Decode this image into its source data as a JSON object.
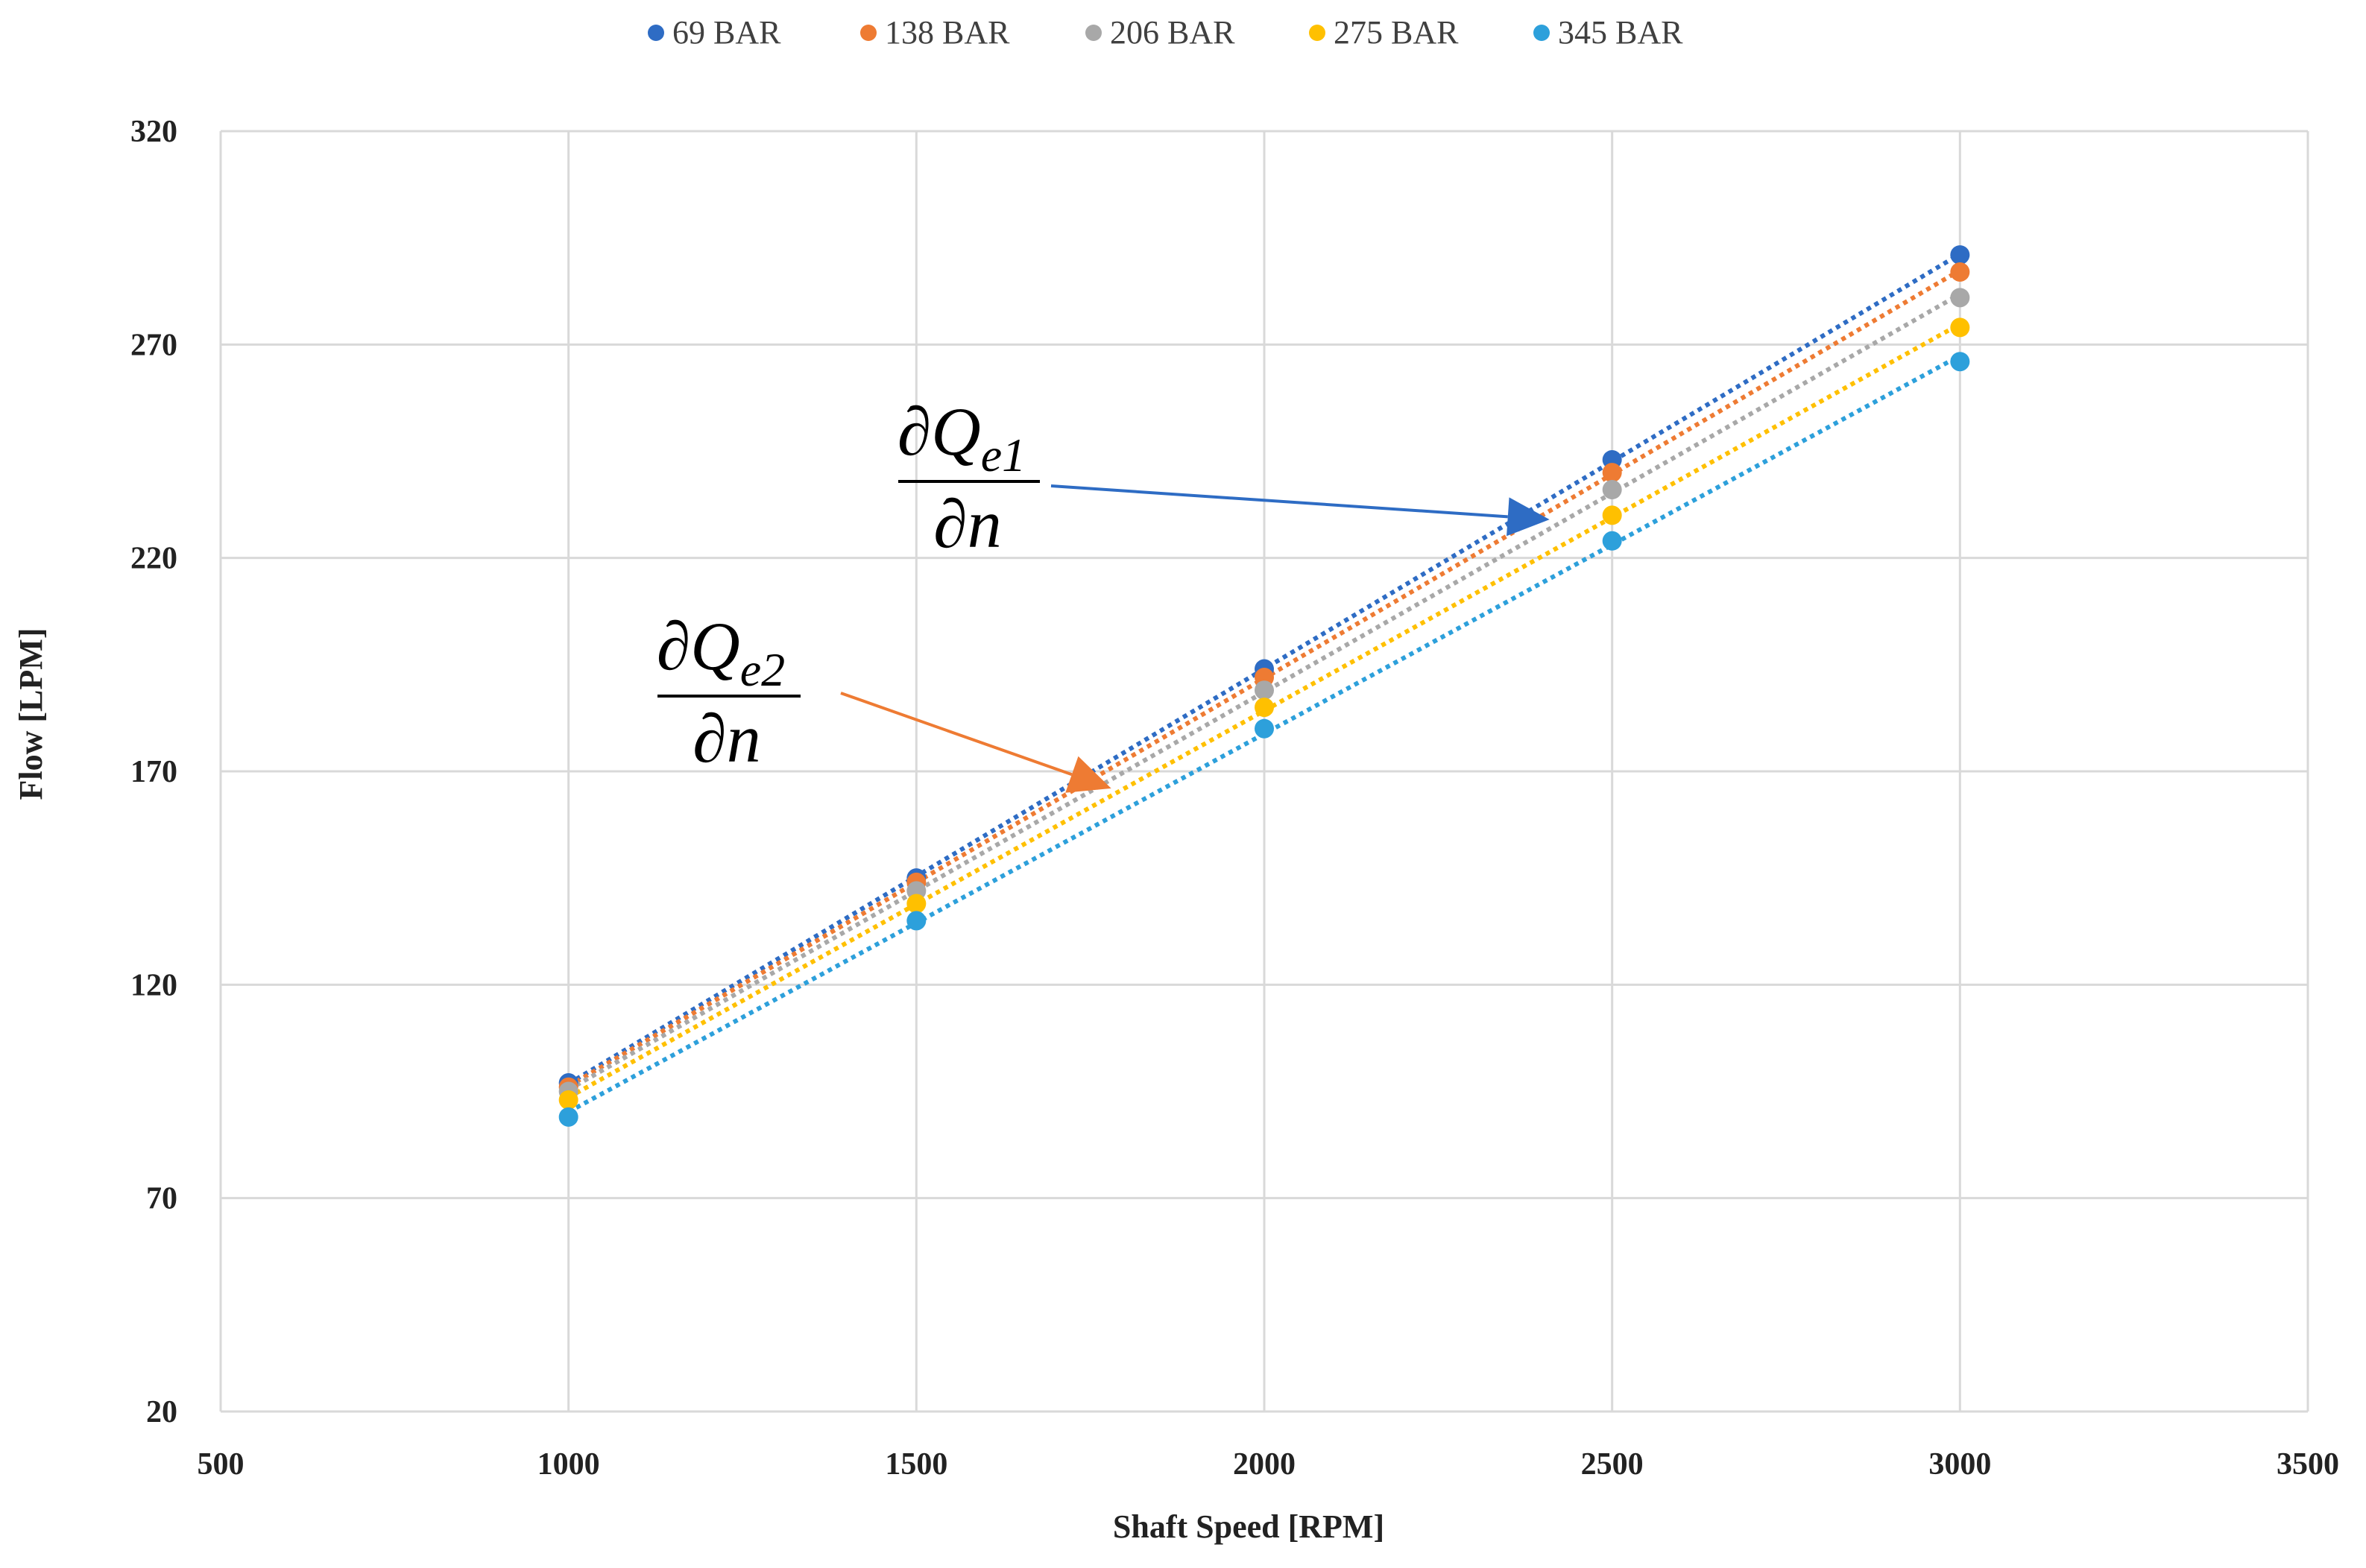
{
  "chart_data": {
    "type": "scatter",
    "title": "",
    "xlabel": "Shaft Speed [RPM]",
    "ylabel": "Flow [LPM]",
    "xlim": [
      500,
      3500
    ],
    "ylim": [
      20,
      320
    ],
    "xticks": [
      "500",
      "1000",
      "1500",
      "2000",
      "2500",
      "3000",
      "3500"
    ],
    "yticks": [
      "20",
      "70",
      "120",
      "170",
      "220",
      "270",
      "320"
    ],
    "grid": true,
    "legend_position": "top-center",
    "x": [
      1000,
      1500,
      2000,
      2500,
      3000
    ],
    "series": [
      {
        "name": "69 BAR",
        "color": "#2E6CC4",
        "values": [
          97,
          145,
          194,
          243,
          291
        ]
      },
      {
        "name": "138 BAR",
        "color": "#EE7B33",
        "values": [
          96,
          144,
          192,
          240,
          287
        ]
      },
      {
        "name": "206 BAR",
        "color": "#A8A8A8",
        "values": [
          95,
          142,
          189,
          236,
          281
        ]
      },
      {
        "name": "275 BAR",
        "color": "#FFC000",
        "values": [
          93,
          139,
          185,
          230,
          274
        ]
      },
      {
        "name": "345 BAR",
        "color": "#2DA0DB",
        "values": [
          89,
          135,
          180,
          224,
          266
        ]
      }
    ],
    "trendline": "linear, dotted",
    "annotations": [
      {
        "name": "dQe1",
        "numerator": "∂Q",
        "numerator_sub": "e1",
        "denominator": "∂n",
        "arrow_color": "#2E6CC4",
        "arrow_target": {
          "x": 2410,
          "y": 229
        }
      },
      {
        "name": "dQe2",
        "numerator": "∂Q",
        "numerator_sub": "e2",
        "denominator": "∂n",
        "arrow_color": "#EE7B33",
        "arrow_target": {
          "x": 1780,
          "y": 166
        }
      }
    ]
  }
}
